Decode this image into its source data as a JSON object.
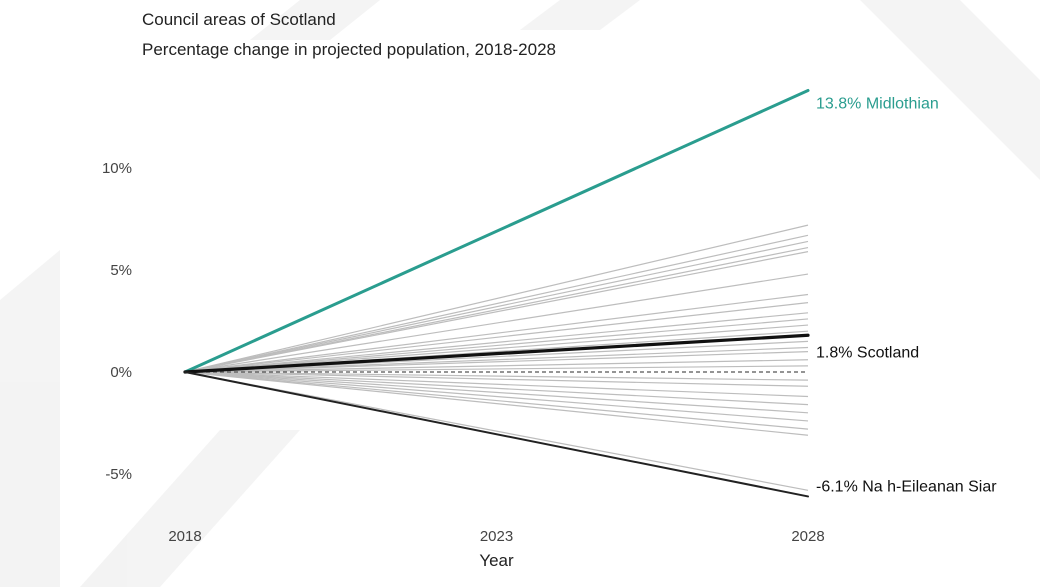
{
  "header": {
    "title": "Council areas of Scotland",
    "subtitle": "Percentage change in projected population, 2018-2028"
  },
  "colors": {
    "highlight": "#2a9d8f",
    "scotland": "#111111",
    "lowest": "#222222",
    "others": "#bdbdbd"
  },
  "chart_data": {
    "type": "line",
    "x": [
      2018,
      2028
    ],
    "xticks": [
      "2018",
      "2023",
      "2028"
    ],
    "xtick_values": [
      2018,
      2023,
      2028
    ],
    "xlabel": "Year",
    "ylabel": "",
    "ylim": [
      -6.5,
      14
    ],
    "yticks": [
      {
        "value": 10,
        "label": "10%"
      },
      {
        "value": 5,
        "label": "5%"
      },
      {
        "value": 0,
        "label": "0%"
      },
      {
        "value": -5,
        "label": "-5%"
      }
    ],
    "grid": false,
    "legend": "none",
    "series": [
      {
        "name": "Midlothian",
        "values": [
          0,
          13.8
        ],
        "role": "highlight",
        "label": "13.8% Midlothian"
      },
      {
        "name": "Scotland",
        "values": [
          0,
          1.8
        ],
        "role": "scotland",
        "label": "1.8% Scotland"
      },
      {
        "name": "Na h-Eileanan Siar",
        "values": [
          0,
          -6.1
        ],
        "role": "lowest",
        "label": "-6.1% Na h-Eileanan Siar"
      }
    ],
    "other_council_values_2028": [
      7.2,
      6.7,
      6.4,
      6.1,
      5.9,
      4.8,
      3.8,
      3.4,
      2.9,
      2.6,
      2.3,
      2.0,
      1.5,
      1.2,
      1.0,
      0.6,
      0.3,
      -0.4,
      -0.7,
      -1.2,
      -1.6,
      -2.0,
      -2.4,
      -2.8,
      -3.1,
      -5.8
    ],
    "dashed_reference": {
      "value": 0
    }
  }
}
